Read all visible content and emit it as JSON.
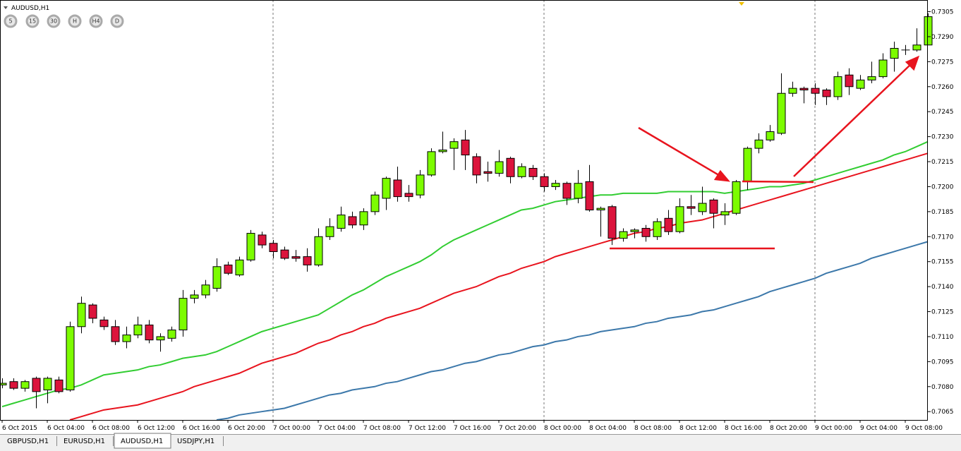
{
  "ui": {
    "symbol_label": "AUDUSD,H1",
    "timeframes": [
      "5",
      "15",
      "30",
      "H",
      "H4",
      "D"
    ],
    "tabs": [
      "GBPUSD,H1",
      "EURUSD,H1",
      "AUDUSD,H1",
      "USDJPY,H1"
    ]
  },
  "chart_data": {
    "type": "candlestick",
    "categories": [
      "6 Oct 2015",
      null,
      null,
      null,
      "6 Oct 04:00",
      null,
      null,
      null,
      "6 Oct 08:00",
      null,
      null,
      null,
      "6 Oct 12:00",
      null,
      null,
      null,
      "6 Oct 16:00",
      null,
      null,
      null,
      "6 Oct 20:00",
      null,
      null,
      null,
      "7 Oct 00:00",
      null,
      null,
      null,
      "7 Oct 04:00",
      null,
      null,
      null,
      "7 Oct 08:00",
      null,
      null,
      null,
      "7 Oct 12:00",
      null,
      null,
      null,
      "7 Oct 16:00",
      null,
      null,
      null,
      "7 Oct 20:00",
      null,
      null,
      null,
      "8 Oct 00:00",
      null,
      null,
      null,
      "8 Oct 04:00",
      null,
      null,
      null,
      "8 Oct 08:00",
      null,
      null,
      null,
      "8 Oct 12:00",
      null,
      null,
      null,
      "8 Oct 16:00",
      null,
      null,
      null,
      "8 Oct 20:00",
      null,
      null,
      null,
      "9 Oct 00:00",
      null,
      null,
      null,
      "9 Oct 04:00",
      null,
      null,
      null,
      "9 Oct 08:00",
      null,
      null
    ],
    "open": [
      0.7081,
      0.7083,
      0.7079,
      0.7085,
      0.7078,
      0.7084,
      0.7078,
      0.7116,
      0.7129,
      0.712,
      0.7116,
      0.7107,
      0.7111,
      0.7117,
      0.7108,
      0.7109,
      0.7114,
      0.7133,
      0.7135,
      0.7139,
      0.7153,
      0.7147,
      0.7156,
      0.7171,
      0.7166,
      0.7162,
      0.7158,
      0.7158,
      0.7153,
      0.717,
      0.7175,
      0.7182,
      0.7177,
      0.7185,
      0.7193,
      0.7204,
      0.7196,
      0.7195,
      0.7207,
      0.7221,
      0.7223,
      0.7228,
      0.7218,
      0.7209,
      0.7208,
      0.7217,
      0.7206,
      0.7211,
      0.7206,
      0.72,
      0.7202,
      0.7193,
      0.7203,
      0.7186,
      0.7188,
      0.7169,
      0.7173,
      0.7175,
      0.717,
      0.7181,
      0.7173,
      0.7188,
      0.7185,
      0.7192,
      0.7183,
      0.7184,
      0.7203,
      0.7223,
      0.7228,
      0.7232,
      0.7256,
      0.7259,
      0.7259,
      0.7258,
      0.7254,
      0.7267,
      0.7259,
      0.7264,
      0.7266,
      0.7277,
      0.7282,
      0.7282,
      0.7285
    ],
    "high": [
      0.7085,
      0.7085,
      0.7084,
      0.7086,
      0.7086,
      0.7086,
      0.7119,
      0.7134,
      0.713,
      0.7122,
      0.712,
      0.7116,
      0.7122,
      0.712,
      0.7112,
      0.7116,
      0.7138,
      0.7138,
      0.7144,
      0.7157,
      0.7155,
      0.7158,
      0.7174,
      0.7173,
      0.7168,
      0.7164,
      0.7162,
      0.7163,
      0.7175,
      0.7181,
      0.7188,
      0.7185,
      0.7187,
      0.7197,
      0.7206,
      0.7212,
      0.7201,
      0.721,
      0.7223,
      0.7233,
      0.7229,
      0.7234,
      0.722,
      0.7215,
      0.7222,
      0.7218,
      0.7214,
      0.7213,
      0.7208,
      0.7204,
      0.7203,
      0.721,
      0.7213,
      0.7188,
      0.7189,
      0.7175,
      0.7175,
      0.7177,
      0.7181,
      0.7186,
      0.7193,
      0.7195,
      0.72,
      0.7193,
      0.719,
      0.7204,
      0.7224,
      0.7232,
      0.7237,
      0.7268,
      0.7263,
      0.726,
      0.7262,
      0.7259,
      0.7269,
      0.7271,
      0.7267,
      0.7275,
      0.728,
      0.7287,
      0.7285,
      0.7295,
      0.7304
    ],
    "low": [
      0.7079,
      0.7078,
      0.7077,
      0.7067,
      0.707,
      0.7076,
      0.7077,
      0.7112,
      0.7118,
      0.7114,
      0.7105,
      0.7103,
      0.7109,
      0.7106,
      0.7101,
      0.7107,
      0.711,
      0.713,
      0.7133,
      0.7137,
      0.7147,
      0.7146,
      0.7155,
      0.7163,
      0.7157,
      0.7156,
      0.7155,
      0.7149,
      0.7152,
      0.7168,
      0.7173,
      0.7175,
      0.7174,
      0.7183,
      0.7186,
      0.7191,
      0.7191,
      0.7193,
      0.7206,
      0.722,
      0.721,
      0.721,
      0.7202,
      0.7203,
      0.7206,
      0.7202,
      0.7205,
      0.7204,
      0.7197,
      0.7198,
      0.7189,
      0.719,
      0.7185,
      0.717,
      0.7165,
      0.7167,
      0.7169,
      0.7167,
      0.7168,
      0.7171,
      0.7172,
      0.7183,
      0.7183,
      0.7175,
      0.7177,
      0.7183,
      0.7198,
      0.722,
      0.7227,
      0.7231,
      0.7254,
      0.725,
      0.7249,
      0.7249,
      0.7252,
      0.7255,
      0.7258,
      0.7262,
      0.7265,
      0.7269,
      0.7279,
      0.7281,
      0.7285
    ],
    "close": [
      0.7082,
      0.7079,
      0.7083,
      0.7077,
      0.7085,
      0.7077,
      0.7116,
      0.713,
      0.7121,
      0.7116,
      0.7107,
      0.7111,
      0.7117,
      0.7108,
      0.711,
      0.7114,
      0.7133,
      0.7135,
      0.7141,
      0.7152,
      0.7148,
      0.7156,
      0.7172,
      0.7165,
      0.7161,
      0.7157,
      0.7157,
      0.7153,
      0.717,
      0.7176,
      0.7183,
      0.7177,
      0.7185,
      0.7195,
      0.7205,
      0.7194,
      0.7194,
      0.7207,
      0.7221,
      0.7222,
      0.7227,
      0.7219,
      0.7207,
      0.7208,
      0.7215,
      0.7206,
      0.7212,
      0.7206,
      0.72,
      0.7202,
      0.7193,
      0.7202,
      0.7186,
      0.7187,
      0.7169,
      0.7173,
      0.7174,
      0.717,
      0.7179,
      0.7173,
      0.7188,
      0.7187,
      0.719,
      0.7184,
      0.7185,
      0.7203,
      0.7223,
      0.7228,
      0.7233,
      0.7256,
      0.7259,
      0.7258,
      0.7256,
      0.7254,
      0.7266,
      0.726,
      0.7264,
      0.7266,
      0.7276,
      0.7283,
      0.7282,
      0.7285,
      0.7302
    ],
    "up_color": "#7cfc00",
    "down_color": "#dc143c",
    "series": [
      {
        "color": "#32cd32",
        "values": [
          0.7068,
          0.707,
          0.7072,
          0.7074,
          0.7076,
          0.7078,
          0.7079,
          0.7081,
          0.7084,
          0.7087,
          0.7088,
          0.7089,
          0.709,
          0.7092,
          0.7093,
          0.7095,
          0.7097,
          0.7098,
          0.7099,
          0.7101,
          0.7104,
          0.7107,
          0.711,
          0.7113,
          0.7115,
          0.7117,
          0.7119,
          0.7121,
          0.7123,
          0.7127,
          0.7131,
          0.7135,
          0.7138,
          0.7142,
          0.7146,
          0.7149,
          0.7152,
          0.7155,
          0.7159,
          0.7164,
          0.7168,
          0.7171,
          0.7174,
          0.7177,
          0.718,
          0.7183,
          0.7186,
          0.7187,
          0.7189,
          0.7191,
          0.7192,
          0.7193,
          0.7194,
          0.7195,
          0.7195,
          0.7196,
          0.7196,
          0.7196,
          0.7196,
          0.7197,
          0.7197,
          0.7197,
          0.7197,
          0.7197,
          0.7196,
          0.7197,
          0.7198,
          0.7199,
          0.72,
          0.72,
          0.7201,
          0.7202,
          0.7204,
          0.7206,
          0.7208,
          0.721,
          0.7212,
          0.7214,
          0.7216,
          0.7219,
          0.7221,
          0.7224,
          0.7227
        ]
      },
      {
        "color": "#e8141e",
        "values": [
          null,
          null,
          null,
          null,
          null,
          null,
          0.706,
          0.7062,
          0.7064,
          0.7066,
          0.7067,
          0.7068,
          0.7069,
          0.7071,
          0.7073,
          0.7075,
          0.7077,
          0.708,
          0.7082,
          0.7084,
          0.7086,
          0.7088,
          0.7091,
          0.7094,
          0.7096,
          0.7098,
          0.71,
          0.7103,
          0.7106,
          0.7108,
          0.7111,
          0.7113,
          0.7116,
          0.7118,
          0.7121,
          0.7123,
          0.7125,
          0.7127,
          0.713,
          0.7133,
          0.7136,
          0.7138,
          0.714,
          0.7143,
          0.7146,
          0.7148,
          0.7151,
          0.7153,
          0.7155,
          0.7158,
          0.716,
          0.7162,
          0.7164,
          0.7166,
          0.7168,
          0.717,
          0.7172,
          0.7173,
          0.7175,
          0.7176,
          0.7178,
          0.7179,
          0.718,
          0.7182,
          0.7184,
          0.7186,
          0.7188,
          0.719,
          0.7192,
          0.7194,
          0.7196,
          0.7198,
          0.72,
          0.7202,
          0.7204,
          0.7206,
          0.7208,
          0.721,
          0.7212,
          0.7214,
          0.7216,
          0.7218,
          0.722
        ]
      },
      {
        "color": "#3c78aa",
        "values": [
          null,
          null,
          null,
          null,
          null,
          null,
          null,
          null,
          null,
          null,
          null,
          null,
          null,
          null,
          null,
          null,
          null,
          null,
          null,
          0.706,
          0.7061,
          0.7063,
          0.7064,
          0.7065,
          0.7066,
          0.7067,
          0.7069,
          0.7071,
          0.7073,
          0.7075,
          0.7076,
          0.7078,
          0.7079,
          0.708,
          0.7082,
          0.7083,
          0.7085,
          0.7087,
          0.7089,
          0.709,
          0.7092,
          0.7094,
          0.7095,
          0.7097,
          0.7099,
          0.71,
          0.7102,
          0.7104,
          0.7105,
          0.7107,
          0.7108,
          0.711,
          0.7111,
          0.7113,
          0.7114,
          0.7115,
          0.7116,
          0.7118,
          0.7119,
          0.7121,
          0.7122,
          0.7123,
          0.7125,
          0.7126,
          0.7128,
          0.713,
          0.7132,
          0.7134,
          0.7137,
          0.7139,
          0.7141,
          0.7143,
          0.7145,
          0.7148,
          0.715,
          0.7152,
          0.7154,
          0.7157,
          0.7159,
          0.7161,
          0.7163,
          0.7165,
          0.7167
        ]
      }
    ],
    "ylim": [
      0.706,
      0.7312
    ],
    "yticks": [
      0.7305,
      {
        "value": 0.729,
        "label": "0.7290"
      },
      0.7275,
      {
        "value": 0.726,
        "label": "0.7260"
      },
      0.7245,
      {
        "value": 0.723,
        "label": "0.7230"
      },
      0.7215,
      {
        "value": 0.72,
        "label": "0.7200"
      },
      0.7185,
      {
        "value": 0.717,
        "label": "0.7170"
      },
      0.7155,
      {
        "value": 0.714,
        "label": "0.7140"
      },
      0.7125,
      {
        "value": 0.711,
        "label": "0.7110"
      },
      0.7095,
      {
        "value": 0.708,
        "label": "0.7080"
      },
      0.7065
    ]
  }
}
